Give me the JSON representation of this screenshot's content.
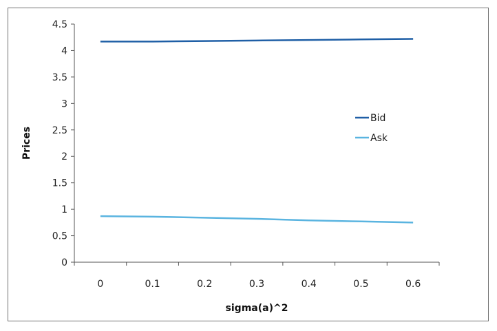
{
  "chart_data": {
    "type": "line",
    "title": "",
    "xlabel": "sigma(a)^2",
    "ylabel": "Prices",
    "x": [
      0,
      0.1,
      0.2,
      0.3,
      0.4,
      0.5,
      0.6
    ],
    "x_tick_labels": [
      "0",
      "0.1",
      "0.2",
      "0.3",
      "0.4",
      "0.5",
      "0.6"
    ],
    "y_tick_labels": [
      "0",
      "0.5",
      "1",
      "1.5",
      "2",
      "2.5",
      "3",
      "3.5",
      "4",
      "4.5"
    ],
    "y_ticks": [
      0,
      0.5,
      1,
      1.5,
      2,
      2.5,
      3,
      3.5,
      4,
      4.5
    ],
    "xlim": [
      -0.05,
      0.65
    ],
    "ylim": [
      0,
      4.5
    ],
    "grid": false,
    "legend_position": "right",
    "series": [
      {
        "name": "Bid",
        "color": "#1f5fa6",
        "values": [
          4.17,
          4.17,
          4.18,
          4.19,
          4.2,
          4.21,
          4.22
        ]
      },
      {
        "name": "Ask",
        "color": "#5ab4e0",
        "values": [
          0.87,
          0.86,
          0.84,
          0.82,
          0.79,
          0.77,
          0.75
        ]
      }
    ]
  }
}
